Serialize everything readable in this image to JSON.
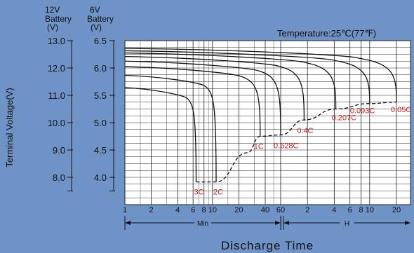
{
  "chart_data": {
    "type": "line",
    "title": "Temperature:25℃(77℉)",
    "xlabel": "Discharge Time",
    "ylabel": "Terminal Voltage(V)",
    "y_axis_12v": {
      "header": [
        "12V",
        "Battery",
        "(V)"
      ],
      "ticks": [
        "13.0",
        "12.0",
        "11.0",
        "10.0",
        "9.0",
        "8.0"
      ],
      "range": [
        7.0,
        13.0
      ]
    },
    "y_axis_6v": {
      "header": [
        "6V",
        "Battery",
        "(V)"
      ],
      "ticks": [
        "6.5",
        "6.0",
        "5.5",
        "5.0",
        "4.5",
        "4.0"
      ],
      "range": [
        3.5,
        6.5
      ]
    },
    "x_ticks": [
      "1",
      "2",
      "4",
      "6",
      "8",
      "10",
      "20",
      "40",
      "60",
      "2",
      "4",
      "6",
      "8",
      "10",
      "20"
    ],
    "x_units": [
      {
        "label": "Min",
        "range_minutes": [
          1,
          60
        ]
      },
      {
        "label": "H",
        "range_hours": [
          1,
          20
        ]
      }
    ],
    "grid": true,
    "series": [
      {
        "name": "3C",
        "end_minutes": 6.5,
        "end_voltage_12v": 7.83
      },
      {
        "name": "2C",
        "end_minutes": 11,
        "end_voltage_12v": 7.83
      },
      {
        "name": "1C",
        "end_minutes": 35,
        "end_voltage_12v": 9.5
      },
      {
        "name": "0.628C",
        "end_minutes": 60,
        "end_voltage_12v": 9.55
      },
      {
        "name": "0.4C",
        "end_minutes": 110,
        "end_voltage_12v": 10.1
      },
      {
        "name": "0.207C",
        "end_minutes": 250,
        "end_voltage_12v": 10.5
      },
      {
        "name": "0.093C",
        "end_minutes": 600,
        "end_voltage_12v": 10.7
      },
      {
        "name": "0.05C",
        "end_minutes": 1200,
        "end_voltage_12v": 10.75
      }
    ],
    "end_voltage_curve_12v": [
      {
        "minutes": 6.5,
        "v": 7.83
      },
      {
        "minutes": 11,
        "v": 7.83
      },
      {
        "minutes": 25,
        "v": 8.9
      },
      {
        "minutes": 35,
        "v": 9.5
      },
      {
        "minutes": 60,
        "v": 9.55
      },
      {
        "minutes": 110,
        "v": 10.1
      },
      {
        "minutes": 250,
        "v": 10.5
      },
      {
        "minutes": 600,
        "v": 10.7
      },
      {
        "minutes": 1200,
        "v": 10.75
      }
    ],
    "colors": {
      "background": "#6f93c7",
      "plot_bg": "#ffffff",
      "curve": "#111111",
      "label": "#cc2020"
    }
  }
}
